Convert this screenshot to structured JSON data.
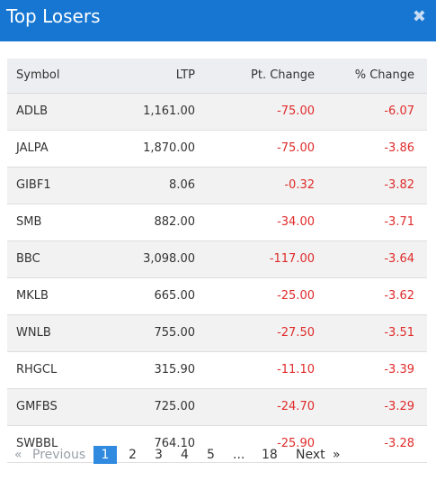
{
  "dialog": {
    "title": "Top Losers"
  },
  "table": {
    "headers": {
      "symbol": "Symbol",
      "ltp": "LTP",
      "pt_change": "Pt. Change",
      "pct_change": "% Change"
    },
    "rows": [
      {
        "symbol": "ADLB",
        "ltp": "1,161.00",
        "pt_change": "-75.00",
        "pct_change": "-6.07"
      },
      {
        "symbol": "JALPA",
        "ltp": "1,870.00",
        "pt_change": "-75.00",
        "pct_change": "-3.86"
      },
      {
        "symbol": "GIBF1",
        "ltp": "8.06",
        "pt_change": "-0.32",
        "pct_change": "-3.82"
      },
      {
        "symbol": "SMB",
        "ltp": "882.00",
        "pt_change": "-34.00",
        "pct_change": "-3.71"
      },
      {
        "symbol": "BBC",
        "ltp": "3,098.00",
        "pt_change": "-117.00",
        "pct_change": "-3.64"
      },
      {
        "symbol": "MKLB",
        "ltp": "665.00",
        "pt_change": "-25.00",
        "pct_change": "-3.62"
      },
      {
        "symbol": "WNLB",
        "ltp": "755.00",
        "pt_change": "-27.50",
        "pct_change": "-3.51"
      },
      {
        "symbol": "RHGCL",
        "ltp": "315.90",
        "pt_change": "-11.10",
        "pct_change": "-3.39"
      },
      {
        "symbol": "GMFBS",
        "ltp": "725.00",
        "pt_change": "-24.70",
        "pct_change": "-3.29"
      },
      {
        "symbol": "SWBBL",
        "ltp": "764.10",
        "pt_change": "-25.90",
        "pct_change": "-3.28"
      }
    ]
  },
  "pagination": {
    "prev_arrow": "«",
    "prev": "Previous",
    "pages": [
      "1",
      "2",
      "3",
      "4",
      "5"
    ],
    "ellipsis": "...",
    "last": "18",
    "next": "Next",
    "next_arrow": "»",
    "active_page": "1"
  },
  "colors": {
    "header_bg": "#1676d2",
    "negative": "#e02b2b",
    "active_page": "#2f8ae0"
  },
  "icons": {
    "close": "close-icon"
  }
}
